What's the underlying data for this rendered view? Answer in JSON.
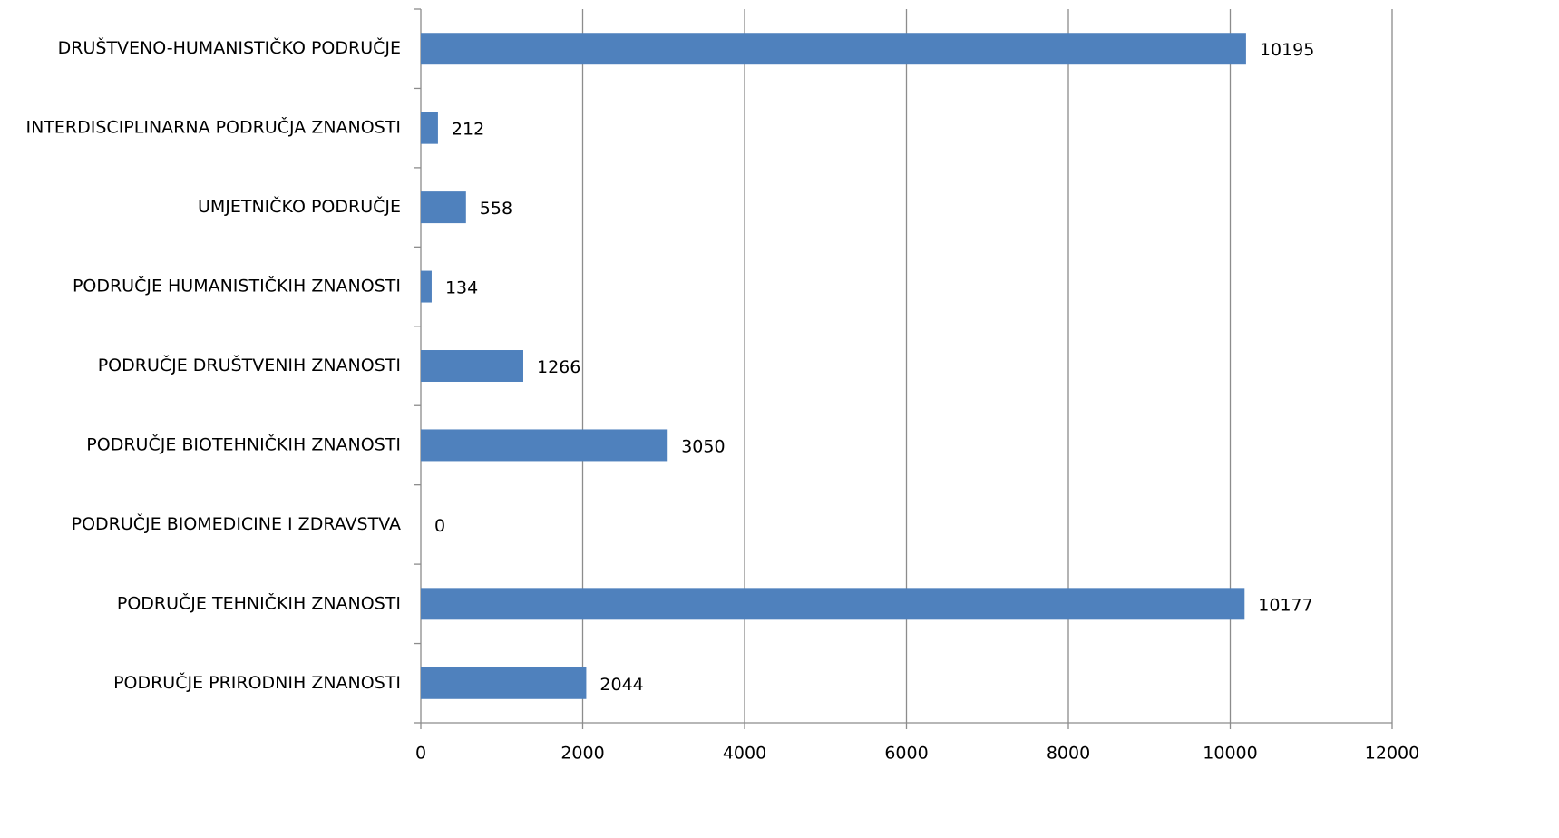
{
  "chart_data": {
    "type": "barh",
    "categories": [
      "DRUŠTVENO-HUMANISTIČKO PODRUČJE",
      "INTERDISCIPLINARNA PODRUČJA ZNANOSTI",
      "UMJETNIČKO PODRUČJE",
      "PODRUČJE HUMANISTIČKIH ZNANOSTI",
      "PODRUČJE DRUŠTVENIH ZNANOSTI",
      "PODRUČJE BIOTEHNIČKIH ZNANOSTI",
      "PODRUČJE BIOMEDICINE I ZDRAVSTVA",
      "PODRUČJE TEHNIČKIH ZNANOSTI",
      "PODRUČJE PRIRODNIH ZNANOSTI"
    ],
    "values": [
      10195,
      212,
      558,
      134,
      1266,
      3050,
      0,
      10177,
      2044
    ],
    "color": "#4f81bd",
    "xlim": [
      0,
      12000
    ],
    "xticks": [
      0,
      2000,
      4000,
      6000,
      8000,
      10000,
      12000
    ],
    "grid": true
  }
}
